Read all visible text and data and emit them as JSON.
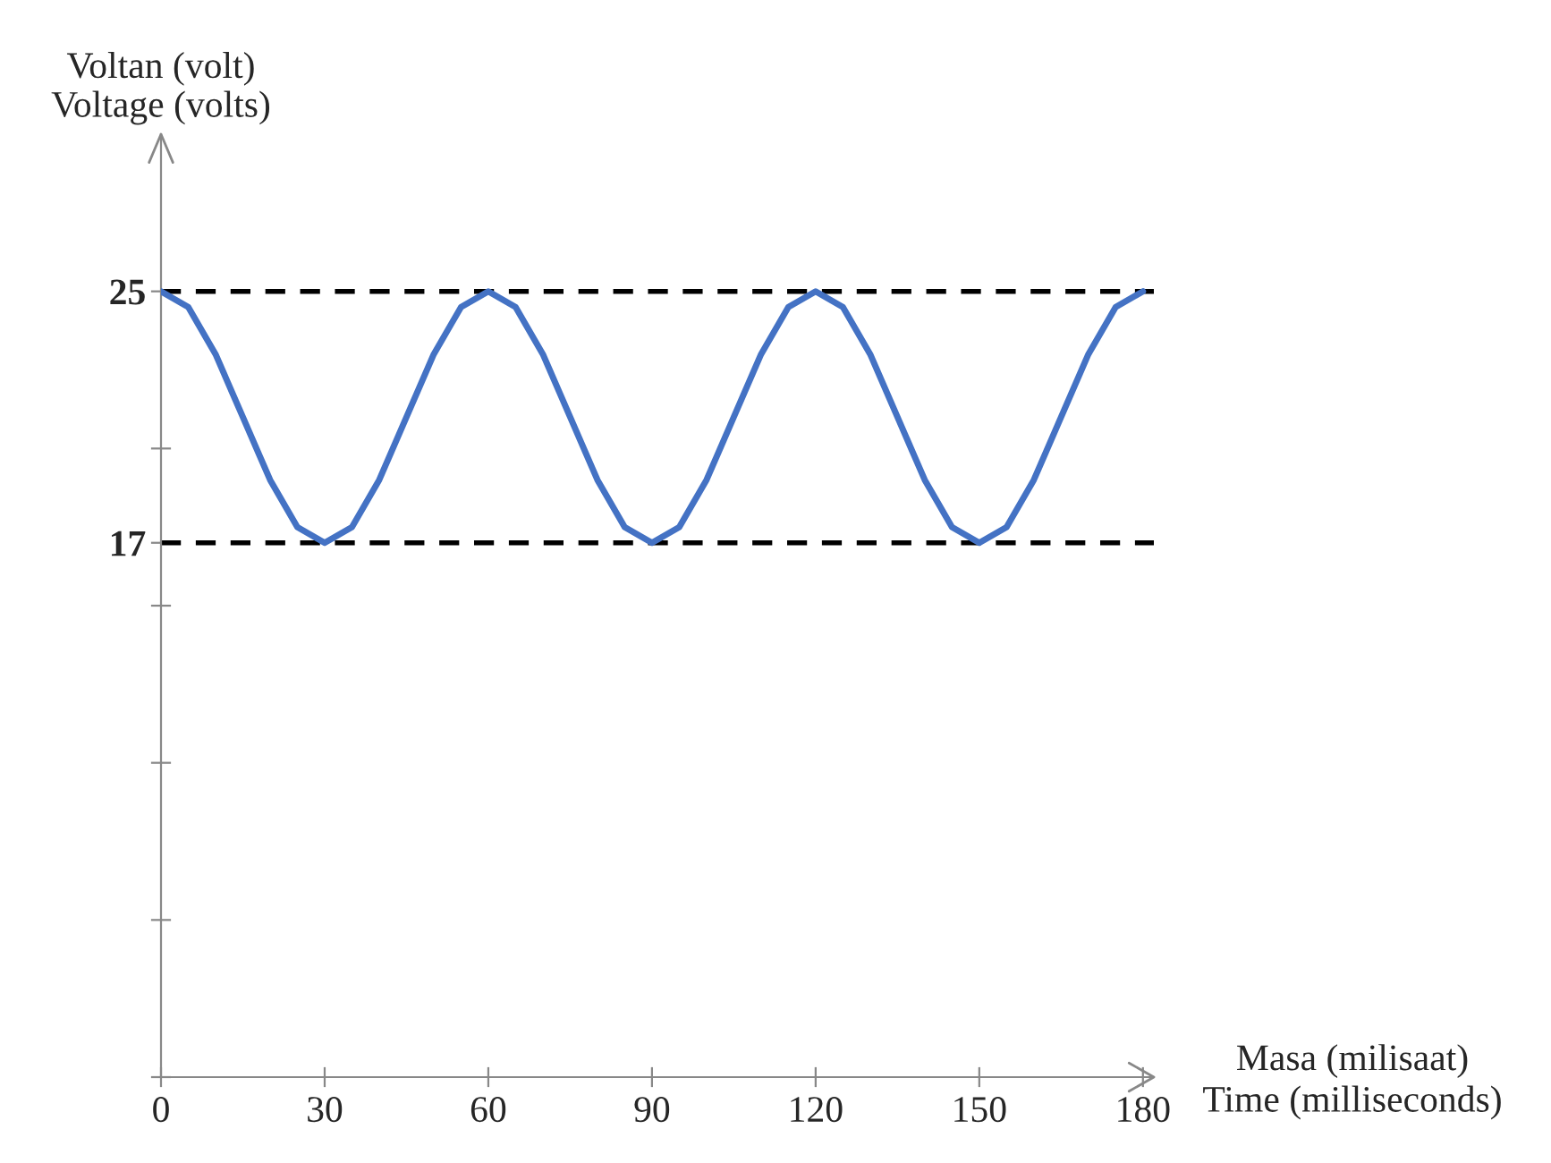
{
  "chart_data": {
    "type": "line",
    "xlabel": "Masa (milisaat)\nTime (milliseconds)",
    "ylabel": "Voltan (volt)\nVoltage (volts)",
    "x": [
      0,
      5,
      10,
      15,
      20,
      25,
      30,
      35,
      40,
      45,
      50,
      55,
      60,
      65,
      70,
      75,
      80,
      85,
      90,
      95,
      100,
      105,
      110,
      115,
      120,
      125,
      130,
      135,
      140,
      145,
      150,
      155,
      160,
      165,
      170,
      175,
      180
    ],
    "series": [
      {
        "color": "#4472c4",
        "values": [
          25,
          24.5,
          23,
          21,
          19,
          17.5,
          17,
          17.5,
          19,
          21,
          23,
          24.5,
          25,
          24.5,
          23,
          21,
          19,
          17.5,
          17,
          17.5,
          19,
          21,
          23,
          24.5,
          25,
          24.5,
          23,
          21,
          19,
          17.5,
          17,
          17.5,
          19,
          21,
          23,
          24.5,
          25
        ]
      }
    ],
    "xlim": [
      0,
      182
    ],
    "ylim": [
      0,
      30
    ],
    "xticks": [
      0,
      30,
      60,
      90,
      120,
      150,
      180
    ],
    "yticks": [
      {
        "value": 0,
        "label": null
      },
      {
        "value": 5,
        "label": null
      },
      {
        "value": 10,
        "label": null
      },
      {
        "value": 15,
        "label": null
      },
      {
        "value": 17,
        "label": "17"
      },
      {
        "value": 20,
        "label": null
      },
      {
        "value": 25,
        "label": "25"
      }
    ],
    "ref_lines": [
      {
        "axis": "y",
        "value": 25,
        "color": "#000000",
        "line_style": "dashed"
      },
      {
        "axis": "y",
        "value": 17,
        "color": "#000000",
        "line_style": "dashed"
      }
    ],
    "grid": false,
    "legend": false,
    "marker": "none",
    "line_style": "solid"
  }
}
